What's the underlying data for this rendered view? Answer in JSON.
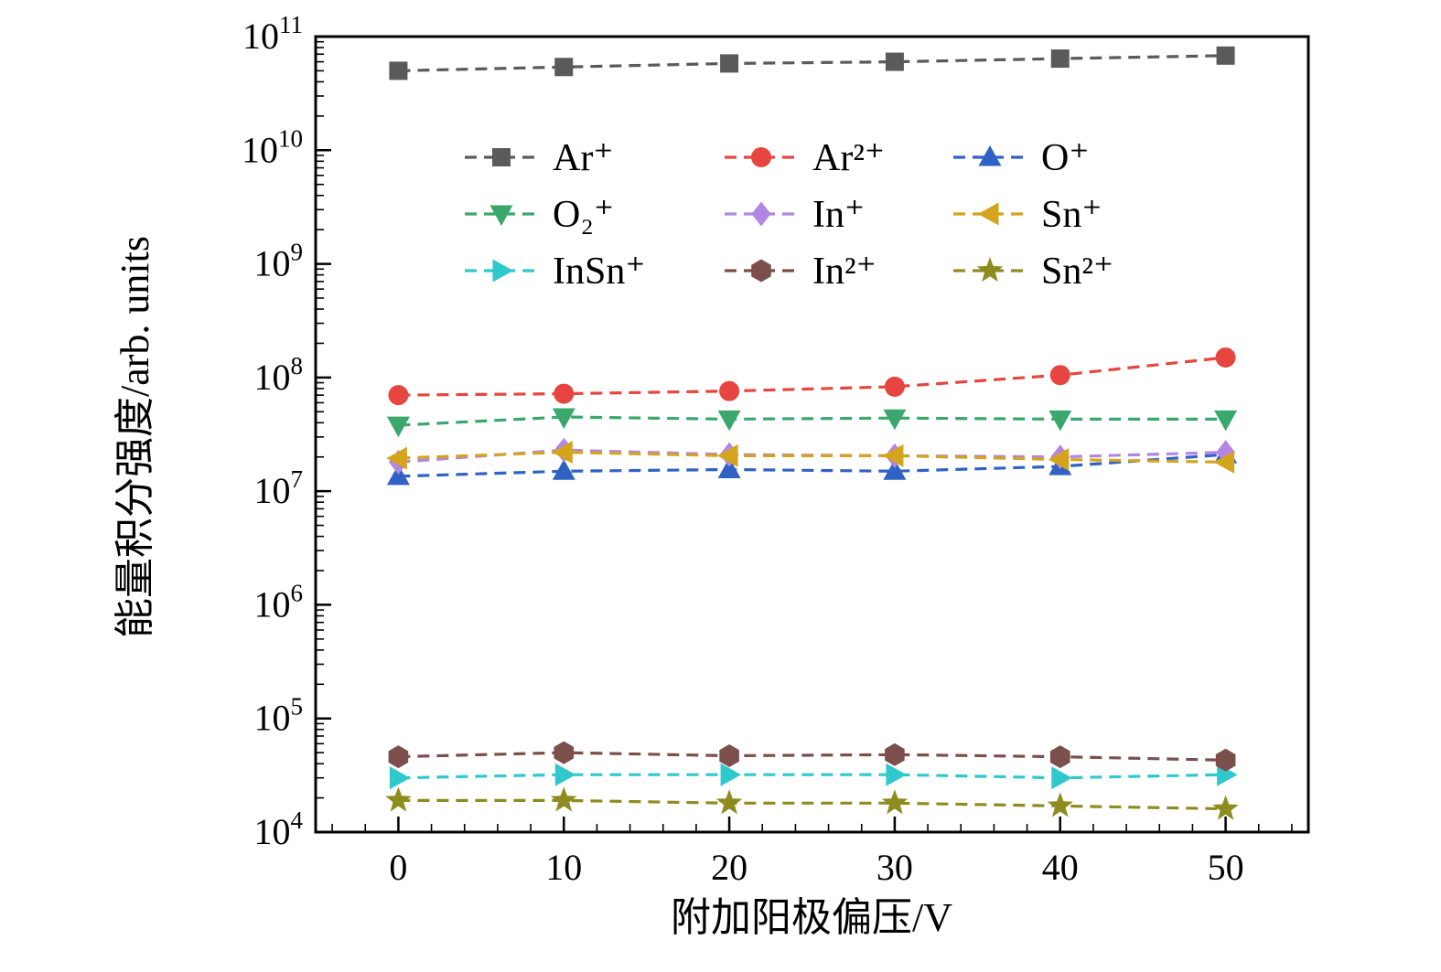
{
  "chart_data": {
    "type": "line",
    "title": "",
    "xlabel": "附加阳极偏压/V",
    "ylabel": "能量积分强度/arb. units",
    "x": [
      0,
      10,
      20,
      30,
      40,
      50
    ],
    "x_ticks": [
      0,
      10,
      20,
      30,
      40,
      50
    ],
    "xlim": [
      -5,
      55
    ],
    "y_scale": "log",
    "ylim": [
      10000.0,
      100000000000.0
    ],
    "y_tick_exponents": [
      4,
      5,
      6,
      7,
      8,
      9,
      10,
      11
    ],
    "grid": false,
    "legend": {
      "position": "upper-left-inside",
      "columns": 3
    },
    "line_style": "dashed",
    "series": [
      {
        "name": "Ar+",
        "label": "Ar⁺",
        "marker": "square",
        "color": "#5a5a5a",
        "values": [
          50000000000.0,
          54000000000.0,
          58000000000.0,
          60000000000.0,
          64000000000.0,
          68000000000.0
        ]
      },
      {
        "name": "Ar2+",
        "label": "Ar²⁺",
        "marker": "circle",
        "color": "#e64540",
        "values": [
          70000000.0,
          72000000.0,
          76000000.0,
          83000000.0,
          105000000.0,
          150000000.0
        ]
      },
      {
        "name": "O+",
        "label": "O⁺",
        "marker": "triangle-up",
        "color": "#2f62c4",
        "values": [
          13500000.0,
          15000000.0,
          15500000.0,
          15000000.0,
          16500000.0,
          21000000.0
        ]
      },
      {
        "name": "O2+",
        "label": "O₂⁺",
        "marker": "triangle-down",
        "color": "#3aa76d",
        "values": [
          38000000.0,
          45000000.0,
          43000000.0,
          44000000.0,
          43000000.0,
          43000000.0
        ]
      },
      {
        "name": "In+",
        "label": "In⁺",
        "marker": "diamond",
        "color": "#b286e2",
        "values": [
          18000000.0,
          23000000.0,
          21000000.0,
          20500000.0,
          20000000.0,
          22000000.0
        ]
      },
      {
        "name": "Sn+",
        "label": "Sn⁺",
        "marker": "triangle-left",
        "color": "#d4a41c",
        "values": [
          19500000.0,
          22000000.0,
          20500000.0,
          20500000.0,
          19000000.0,
          18000000.0
        ]
      },
      {
        "name": "InSn+",
        "label": "InSn⁺",
        "marker": "triangle-right",
        "color": "#2fc8cc",
        "values": [
          30000.0,
          32000.0,
          32000.0,
          32000.0,
          30000.0,
          32000.0
        ]
      },
      {
        "name": "In2+",
        "label": "In²⁺",
        "marker": "hexagon",
        "color": "#7b4f4b",
        "values": [
          46000.0,
          50000.0,
          47000.0,
          48000.0,
          46000.0,
          43000.0
        ]
      },
      {
        "name": "Sn2+",
        "label": "Sn²⁺",
        "marker": "star",
        "color": "#8e8b1f",
        "values": [
          19000.0,
          19000.0,
          18000.0,
          18000.0,
          17000.0,
          16000.0
        ]
      }
    ]
  }
}
